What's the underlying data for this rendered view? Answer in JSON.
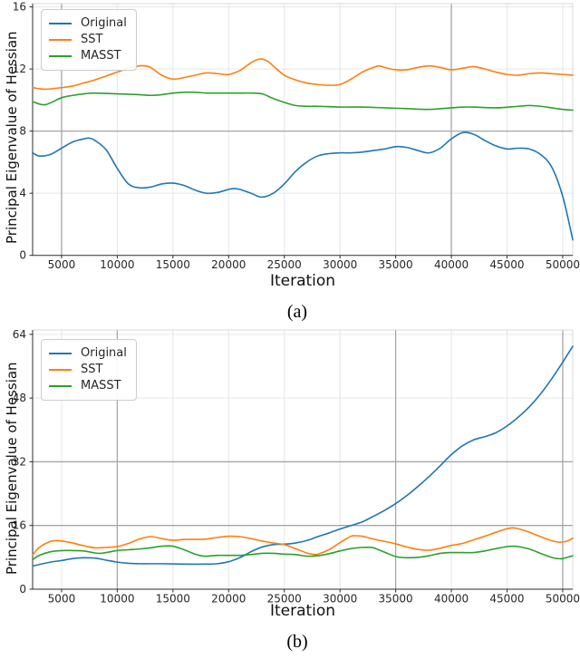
{
  "figure": {
    "description": "Two stacked line charts of principal Hessian eigenvalue across training iterations",
    "colors": {
      "original": "#1f77b4",
      "sst": "#ff7f0e",
      "masst": "#2ca02c",
      "grid_light": "#e6e6e6",
      "grid_dark": "#a6a6a6",
      "spine_dark": "#2b2b2b",
      "spine_light": "#d9d9d9",
      "text": "#262626"
    }
  },
  "chart_data": [
    {
      "type": "line",
      "caption": "(a)",
      "xlabel": "Iteration",
      "ylabel": "Principal Eigenvalue of Hessian",
      "xlim": [
        2400,
        50900
      ],
      "ylim": [
        0,
        16.21
      ],
      "xticks": [
        5000,
        10000,
        15000,
        20000,
        25000,
        30000,
        35000,
        40000,
        45000,
        50000
      ],
      "xtick_labels": [
        "5000",
        "10000",
        "15000",
        "20000",
        "25000",
        "30000",
        "35000",
        "40000",
        "45000",
        "50000"
      ],
      "yticks": [
        0,
        4,
        8,
        12,
        16
      ],
      "ytick_labels": [
        "0",
        "4",
        "8",
        "12",
        "16"
      ],
      "grid": true,
      "ref_vlines": [
        5000,
        40000
      ],
      "ref_hlines": [
        8
      ],
      "legend_position": "upper left",
      "series": [
        {
          "name": "Original",
          "color": "#1f77b4",
          "x": [
            2400,
            3000,
            4000,
            5000,
            6000,
            7000,
            7500,
            8000,
            9000,
            10000,
            11000,
            12000,
            13000,
            14000,
            15000,
            16000,
            17000,
            18000,
            19000,
            20000,
            20500,
            21000,
            22000,
            23000,
            24000,
            25000,
            26000,
            27000,
            28000,
            29000,
            30000,
            31000,
            32000,
            33000,
            34000,
            35000,
            36000,
            37000,
            38000,
            39000,
            40000,
            41000,
            42000,
            43000,
            44000,
            45000,
            46000,
            47000,
            48000,
            49000,
            50000,
            50900
          ],
          "y": [
            6.6,
            6.4,
            6.5,
            6.9,
            7.3,
            7.5,
            7.55,
            7.4,
            6.8,
            5.6,
            4.6,
            4.35,
            4.4,
            4.6,
            4.65,
            4.5,
            4.2,
            4.0,
            4.05,
            4.25,
            4.3,
            4.25,
            4.0,
            3.75,
            4.0,
            4.6,
            5.4,
            6.0,
            6.4,
            6.55,
            6.6,
            6.6,
            6.65,
            6.75,
            6.85,
            7.0,
            6.95,
            6.75,
            6.6,
            6.9,
            7.5,
            7.9,
            7.8,
            7.4,
            7.05,
            6.85,
            6.9,
            6.85,
            6.5,
            5.7,
            3.8,
            1.0
          ]
        },
        {
          "name": "SST",
          "color": "#ff7f0e",
          "x": [
            2400,
            3500,
            5000,
            6000,
            7000,
            8000,
            9000,
            10000,
            11000,
            12000,
            12500,
            13000,
            14000,
            15000,
            16000,
            17000,
            18000,
            19000,
            20000,
            21000,
            22000,
            22800,
            23500,
            24000,
            25000,
            26000,
            27000,
            28000,
            29000,
            30000,
            31000,
            32000,
            33000,
            33500,
            34000,
            35000,
            36000,
            37000,
            38000,
            39000,
            40000,
            41000,
            42000,
            43000,
            44000,
            45000,
            46000,
            47000,
            48000,
            49000,
            50000,
            50900
          ],
          "y": [
            10.8,
            10.7,
            10.8,
            10.9,
            11.1,
            11.3,
            11.55,
            11.8,
            12.05,
            12.2,
            12.2,
            12.1,
            11.6,
            11.35,
            11.45,
            11.6,
            11.75,
            11.7,
            11.65,
            11.9,
            12.4,
            12.65,
            12.5,
            12.2,
            11.6,
            11.3,
            11.1,
            11.0,
            10.95,
            11.0,
            11.35,
            11.8,
            12.1,
            12.2,
            12.1,
            11.95,
            11.95,
            12.1,
            12.2,
            12.1,
            11.95,
            12.05,
            12.15,
            12.0,
            11.8,
            11.65,
            11.6,
            11.7,
            11.75,
            11.7,
            11.65,
            11.6
          ]
        },
        {
          "name": "MASST",
          "color": "#2ca02c",
          "x": [
            2400,
            3500,
            5000,
            6000,
            7000,
            8000,
            10000,
            12000,
            13000,
            14000,
            15000,
            16000,
            17000,
            18000,
            19000,
            20000,
            21000,
            22000,
            23000,
            24000,
            25000,
            26000,
            27000,
            28000,
            30000,
            32000,
            34000,
            36000,
            38000,
            40000,
            41000,
            42000,
            44000,
            46000,
            47000,
            48000,
            49000,
            50000,
            50900
          ],
          "y": [
            9.9,
            9.7,
            10.15,
            10.3,
            10.4,
            10.45,
            10.4,
            10.35,
            10.3,
            10.35,
            10.45,
            10.5,
            10.5,
            10.45,
            10.45,
            10.45,
            10.45,
            10.45,
            10.4,
            10.1,
            9.85,
            9.65,
            9.6,
            9.6,
            9.55,
            9.55,
            9.5,
            9.45,
            9.4,
            9.5,
            9.55,
            9.55,
            9.5,
            9.6,
            9.65,
            9.6,
            9.5,
            9.4,
            9.35
          ]
        }
      ]
    },
    {
      "type": "line",
      "caption": "(b)",
      "xlabel": "Iteration",
      "ylabel": "Principal Eigenvalue of Hessian",
      "xlim": [
        2400,
        50900
      ],
      "ylim": [
        0,
        65.1
      ],
      "xticks": [
        5000,
        10000,
        15000,
        20000,
        25000,
        30000,
        35000,
        40000,
        45000,
        50000
      ],
      "xtick_labels": [
        "5000",
        "10000",
        "15000",
        "20000",
        "25000",
        "30000",
        "35000",
        "40000",
        "45000",
        "50000"
      ],
      "yticks": [
        0,
        16,
        32,
        48,
        64
      ],
      "ytick_labels": [
        "0",
        "16",
        "32",
        "48",
        "64"
      ],
      "grid": true,
      "ref_vlines": [
        10000,
        35000,
        50000
      ],
      "ref_hlines": [
        16,
        32
      ],
      "legend_position": "upper left",
      "series": [
        {
          "name": "Original",
          "color": "#1f77b4",
          "x": [
            2400,
            3000,
            4000,
            5000,
            6000,
            7000,
            8000,
            9000,
            10000,
            11000,
            12000,
            14000,
            16000,
            18000,
            19000,
            20000,
            21000,
            22000,
            23000,
            24000,
            25000,
            26000,
            27000,
            28000,
            29000,
            30000,
            31000,
            32000,
            33000,
            34000,
            35000,
            36000,
            37000,
            38000,
            39000,
            40000,
            41000,
            42000,
            43000,
            44000,
            45000,
            46000,
            47000,
            48000,
            49000,
            50000,
            50900
          ],
          "y": [
            5.8,
            6.2,
            6.8,
            7.2,
            7.7,
            7.9,
            7.8,
            7.3,
            6.8,
            6.5,
            6.4,
            6.4,
            6.3,
            6.3,
            6.4,
            6.9,
            7.9,
            9.4,
            10.6,
            11.2,
            11.3,
            11.6,
            12.2,
            13.2,
            14.1,
            15.1,
            16.0,
            16.9,
            18.3,
            19.8,
            21.5,
            23.5,
            25.8,
            28.3,
            31.0,
            33.8,
            36.0,
            37.5,
            38.3,
            39.3,
            41.0,
            43.2,
            45.8,
            49.0,
            52.8,
            57.0,
            61.0
          ]
        },
        {
          "name": "SST",
          "color": "#ff7f0e",
          "x": [
            2400,
            3000,
            4000,
            4500,
            5000,
            6000,
            7000,
            8000,
            9000,
            10000,
            11000,
            12000,
            13000,
            14000,
            15000,
            16000,
            17000,
            18000,
            19000,
            20000,
            21000,
            22000,
            23000,
            24000,
            25000,
            26000,
            27000,
            27500,
            28000,
            29000,
            30000,
            31000,
            31500,
            32000,
            33000,
            34000,
            35000,
            36000,
            37000,
            38000,
            39000,
            40000,
            41000,
            42000,
            43000,
            44000,
            45000,
            45500,
            46000,
            47000,
            48000,
            49000,
            49700,
            50400,
            50900
          ],
          "y": [
            8.6,
            10.5,
            12.0,
            12.2,
            12.1,
            11.6,
            10.9,
            10.4,
            10.5,
            10.7,
            11.5,
            12.6,
            13.2,
            12.7,
            12.3,
            12.5,
            12.5,
            12.6,
            13.0,
            13.3,
            13.2,
            12.7,
            12.1,
            11.6,
            11.2,
            10.2,
            9.1,
            8.8,
            8.8,
            9.9,
            11.7,
            13.3,
            13.4,
            13.3,
            12.6,
            12.0,
            11.4,
            10.6,
            10.0,
            9.8,
            10.3,
            11.0,
            11.5,
            12.4,
            13.3,
            14.3,
            15.2,
            15.4,
            15.2,
            14.3,
            13.2,
            12.2,
            11.8,
            12.1,
            12.8
          ]
        },
        {
          "name": "MASST",
          "color": "#2ca02c",
          "x": [
            2400,
            3000,
            4000,
            5000,
            6000,
            7000,
            8000,
            8500,
            9000,
            10000,
            11000,
            12000,
            13000,
            14000,
            15000,
            16000,
            17000,
            17800,
            18500,
            19000,
            20000,
            21000,
            22000,
            23000,
            24000,
            25000,
            26000,
            27000,
            28000,
            29000,
            30000,
            31000,
            32000,
            32600,
            33000,
            34000,
            35000,
            35500,
            36000,
            37000,
            38000,
            39000,
            40000,
            41000,
            42000,
            43000,
            44000,
            45000,
            45500,
            46000,
            47000,
            48000,
            49000,
            49500,
            50000,
            50900
          ],
          "y": [
            7.4,
            8.5,
            9.4,
            9.7,
            9.7,
            9.6,
            9.1,
            9.0,
            9.2,
            9.7,
            9.9,
            10.1,
            10.4,
            10.8,
            10.8,
            9.9,
            8.8,
            8.3,
            8.4,
            8.5,
            8.5,
            8.5,
            8.7,
            9.0,
            9.0,
            8.8,
            8.7,
            8.3,
            8.4,
            8.9,
            9.6,
            10.2,
            10.5,
            10.5,
            10.4,
            9.3,
            8.2,
            8.0,
            7.9,
            8.0,
            8.4,
            9.0,
            9.2,
            9.2,
            9.2,
            9.6,
            10.2,
            10.7,
            10.8,
            10.7,
            10.1,
            9.0,
            8.0,
            7.7,
            7.7,
            8.4
          ]
        }
      ]
    }
  ]
}
